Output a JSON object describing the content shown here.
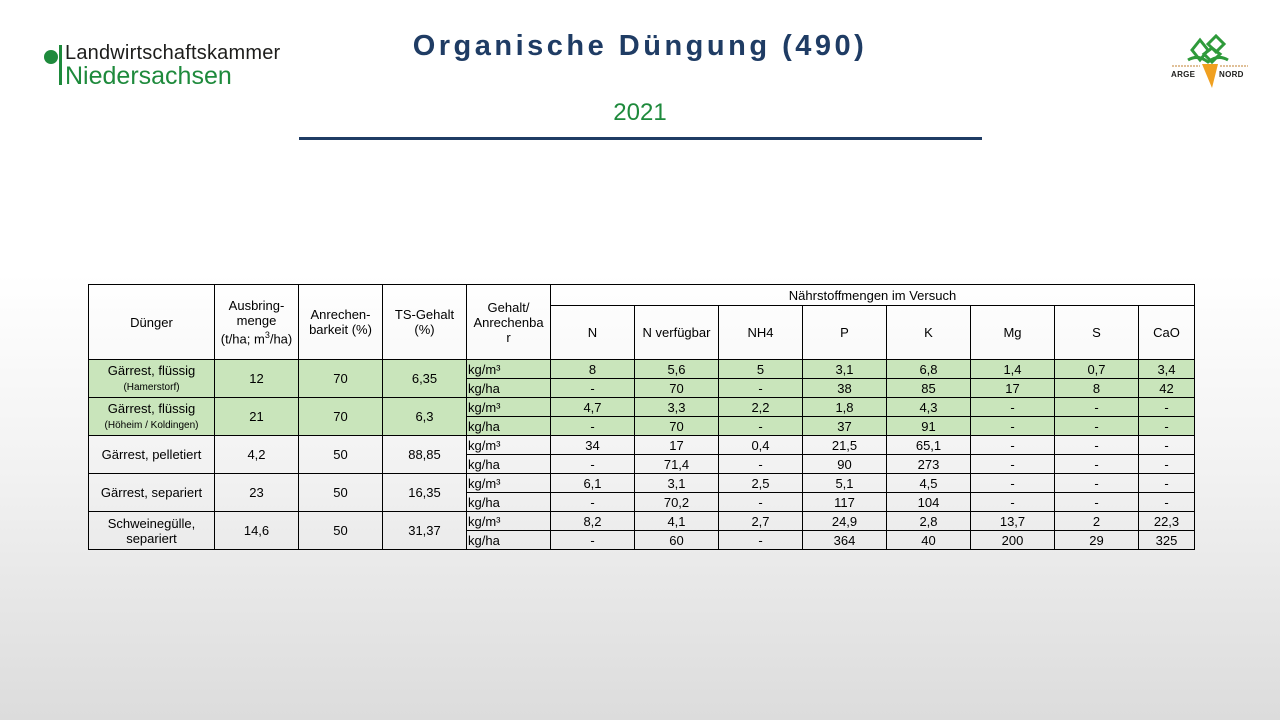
{
  "header": {
    "logo_left_line1": "Landwirtschaftskammer",
    "logo_left_line2": "Niedersachsen",
    "title": "Organische Düngung (490)",
    "year": "2021",
    "logo_right_left": "ARGE",
    "logo_right_right": "NORD",
    "accent_green": "#1e8a3c",
    "title_blue": "#1f3c64"
  },
  "table": {
    "headers": {
      "duenger": "Dünger",
      "ausbring_1": "Ausbring-",
      "ausbring_2": "menge",
      "ausbring_3a": "(t/ha; m",
      "ausbring_3sup": "3",
      "ausbring_3b": "/ha)",
      "anrechen_1": "Anrechen-",
      "anrechen_2": "barkeit (%)",
      "ts_1": "TS-Gehalt",
      "ts_2": "(%)",
      "gehalt_1": "Gehalt/",
      "gehalt_2": "Anrechenba",
      "gehalt_3": "r",
      "group": "Nährstoffmengen im Versuch",
      "nutrients": [
        "N",
        "N verfügbar",
        "NH4",
        "P",
        "K",
        "Mg",
        "S",
        "CaO"
      ]
    },
    "rows": [
      {
        "name": "Gärrest, flüssig",
        "sub": "(Hamerstorf)",
        "menge": "12",
        "anrechen": "70",
        "ts": "6,35",
        "unit1": "kg/m³",
        "unit2": "kg/ha",
        "v1": [
          "8",
          "5,6",
          "5",
          "3,1",
          "6,8",
          "1,4",
          "0,7",
          "3,4"
        ],
        "v2": [
          "-",
          "70",
          "-",
          "38",
          "85",
          "17",
          "8",
          "42"
        ]
      },
      {
        "name": "Gärrest, flüssig",
        "sub": "(Höheim / Koldingen)",
        "menge": "21",
        "anrechen": "70",
        "ts": "6,3",
        "unit1": "kg/m³",
        "unit2": "kg/ha",
        "v1": [
          "4,7",
          "3,3",
          "2,2",
          "1,8",
          "4,3",
          "-",
          "-",
          "-"
        ],
        "v2": [
          "-",
          "70",
          "-",
          "37",
          "91",
          "-",
          "-",
          "-"
        ]
      },
      {
        "name": "Gärrest, pelletiert",
        "sub": "",
        "menge": "4,2",
        "anrechen": "50",
        "ts": "88,85",
        "unit1": "kg/m³",
        "unit2": "kg/ha",
        "v1": [
          "34",
          "17",
          "0,4",
          "21,5",
          "65,1",
          "-",
          "-",
          "-"
        ],
        "v2": [
          "-",
          "71,4",
          "-",
          "90",
          "273",
          "-",
          "-",
          "-"
        ]
      },
      {
        "name": "Gärrest, separiert",
        "sub": "",
        "menge": "23",
        "anrechen": "50",
        "ts": "16,35",
        "unit1": "kg/m³",
        "unit2": "kg/ha",
        "v1": [
          "6,1",
          "3,1",
          "2,5",
          "5,1",
          "4,5",
          "-",
          "-",
          "-"
        ],
        "v2": [
          "-",
          "70,2",
          "-",
          "117",
          "104",
          "-",
          "-",
          "-"
        ]
      },
      {
        "name": "Schweinegülle,",
        "sub": "separiert",
        "menge": "14,6",
        "anrechen": "50",
        "ts": "31,37",
        "unit1": "kg/m³",
        "unit2": "kg/ha",
        "v1": [
          "8,2",
          "4,1",
          "2,7",
          "24,9",
          "2,8",
          "13,7",
          "2",
          "22,3"
        ],
        "v2": [
          "-",
          "60",
          "-",
          "364",
          "40",
          "200",
          "29",
          "325"
        ]
      }
    ]
  }
}
